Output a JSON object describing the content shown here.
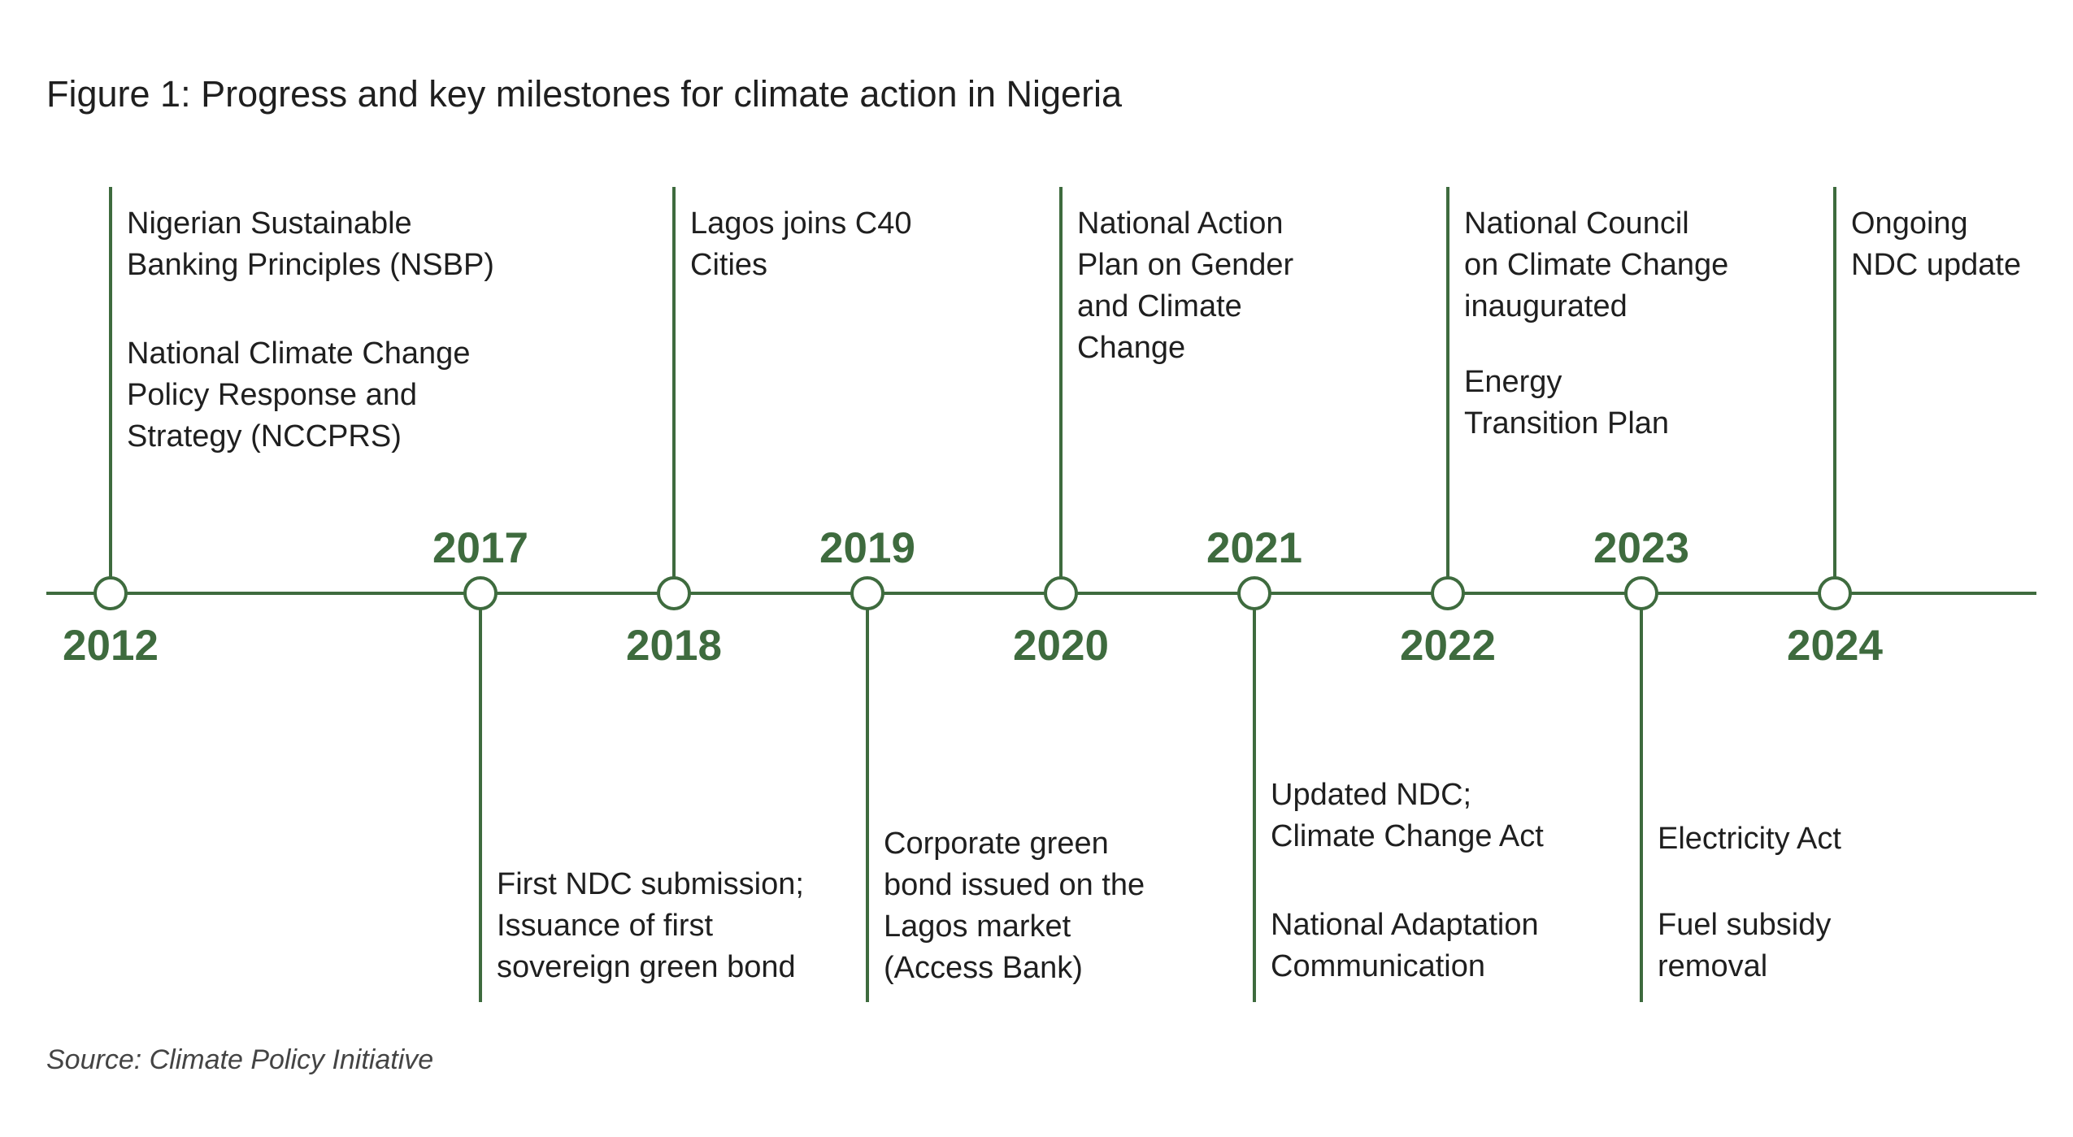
{
  "title": "Figure 1: Progress and key milestones for climate action in Nigeria",
  "source": "Source: Climate Policy Initiative",
  "colors": {
    "line": "#3e6b3e",
    "year": "#3e6b3e",
    "text": "#1f1f1f"
  },
  "milestones": [
    {
      "year": "2012",
      "events": [
        [
          "Nigerian Sustainable",
          "Banking Principles (NSBP)"
        ],
        [
          "National Climate Change",
          "Policy Response and",
          "Strategy (NCCPRS)"
        ]
      ]
    },
    {
      "year": "2017",
      "events": [
        [
          "First NDC submission;",
          "Issuance of first",
          "sovereign green bond"
        ]
      ]
    },
    {
      "year": "2018",
      "events": [
        [
          "Lagos joins C40",
          "Cities"
        ]
      ]
    },
    {
      "year": "2019",
      "events": [
        [
          "Corporate green",
          "bond issued on the",
          "Lagos market",
          "(Access Bank)"
        ]
      ]
    },
    {
      "year": "2020",
      "events": [
        [
          "National Action",
          "Plan on Gender",
          "and Climate",
          "Change"
        ]
      ]
    },
    {
      "year": "2021",
      "events": [
        [
          "Updated NDC;",
          "Climate Change Act"
        ],
        [
          "National Adaptation",
          "Communication"
        ]
      ]
    },
    {
      "year": "2022",
      "events": [
        [
          "National Council",
          "on Climate Change",
          "inaugurated"
        ],
        [
          "Energy",
          "Transition Plan"
        ]
      ]
    },
    {
      "year": "2023",
      "events": [
        [
          "Electricity Act"
        ],
        [
          "Fuel subsidy",
          "removal"
        ]
      ]
    },
    {
      "year": "2024",
      "events": [
        [
          "Ongoing",
          "NDC update"
        ]
      ]
    }
  ]
}
